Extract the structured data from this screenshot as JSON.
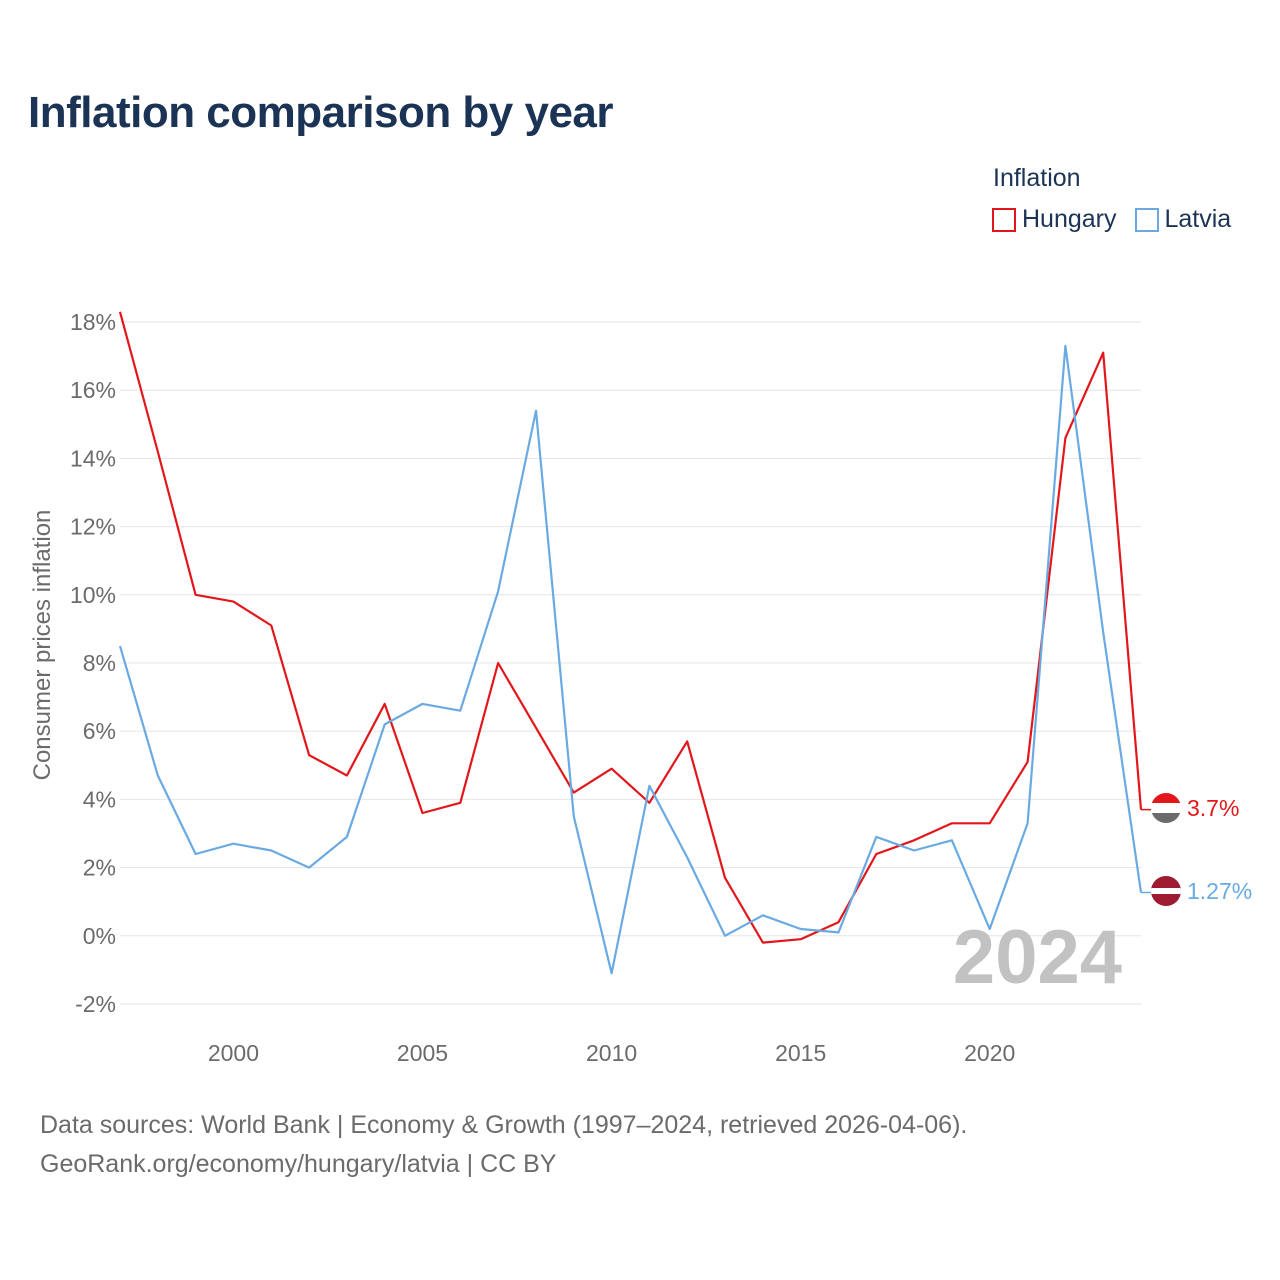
{
  "title": "Inflation comparison by year",
  "legend": {
    "title": "Inflation",
    "items": [
      {
        "label": "Hungary",
        "color": "#e3171b"
      },
      {
        "label": "Latvia",
        "color": "#6aaae3"
      }
    ]
  },
  "footer": {
    "line1": "Data sources: World Bank | Economy & Growth (1997–2024, retrieved 2026-04-06).",
    "line2": "GeoRank.org/economy/hungary/latvia | CC BY"
  },
  "chart_data": {
    "type": "line",
    "title": "Inflation comparison by year",
    "xlabel": "",
    "ylabel": "Consumer prices inflation",
    "x": [
      1997,
      1998,
      1999,
      2000,
      2001,
      2002,
      2003,
      2004,
      2005,
      2006,
      2007,
      2008,
      2009,
      2010,
      2011,
      2012,
      2013,
      2014,
      2015,
      2016,
      2017,
      2018,
      2019,
      2020,
      2021,
      2022,
      2023,
      2024
    ],
    "xlim": [
      1997,
      2024
    ],
    "ylim": [
      -2,
      18
    ],
    "x_ticks": [
      2000,
      2005,
      2010,
      2015,
      2020
    ],
    "y_ticks": [
      -2,
      0,
      2,
      4,
      6,
      8,
      10,
      12,
      14,
      16,
      18
    ],
    "y_tick_labels": [
      "-2%",
      "0%",
      "2%",
      "4%",
      "6%",
      "8%",
      "10%",
      "12%",
      "14%",
      "16%",
      "18%"
    ],
    "year_watermark": "2024",
    "series": [
      {
        "name": "Hungary",
        "color": "#e3171b",
        "end_label": "3.7%",
        "values": [
          18.3,
          14.2,
          10.0,
          9.8,
          9.1,
          5.3,
          4.7,
          6.8,
          3.6,
          3.9,
          8.0,
          6.1,
          4.2,
          4.9,
          3.9,
          5.7,
          1.7,
          -0.2,
          -0.1,
          0.4,
          2.4,
          2.8,
          3.3,
          3.3,
          5.1,
          14.6,
          17.1,
          3.7
        ]
      },
      {
        "name": "Latvia",
        "color": "#6aaae3",
        "end_label": "1.27%",
        "values": [
          8.5,
          4.7,
          2.4,
          2.7,
          2.5,
          2.0,
          2.9,
          6.2,
          6.8,
          6.6,
          10.1,
          15.4,
          3.5,
          -1.1,
          4.4,
          2.3,
          0.0,
          0.6,
          0.2,
          0.1,
          2.9,
          2.5,
          2.8,
          0.2,
          3.3,
          17.3,
          8.9,
          1.27
        ]
      }
    ]
  }
}
